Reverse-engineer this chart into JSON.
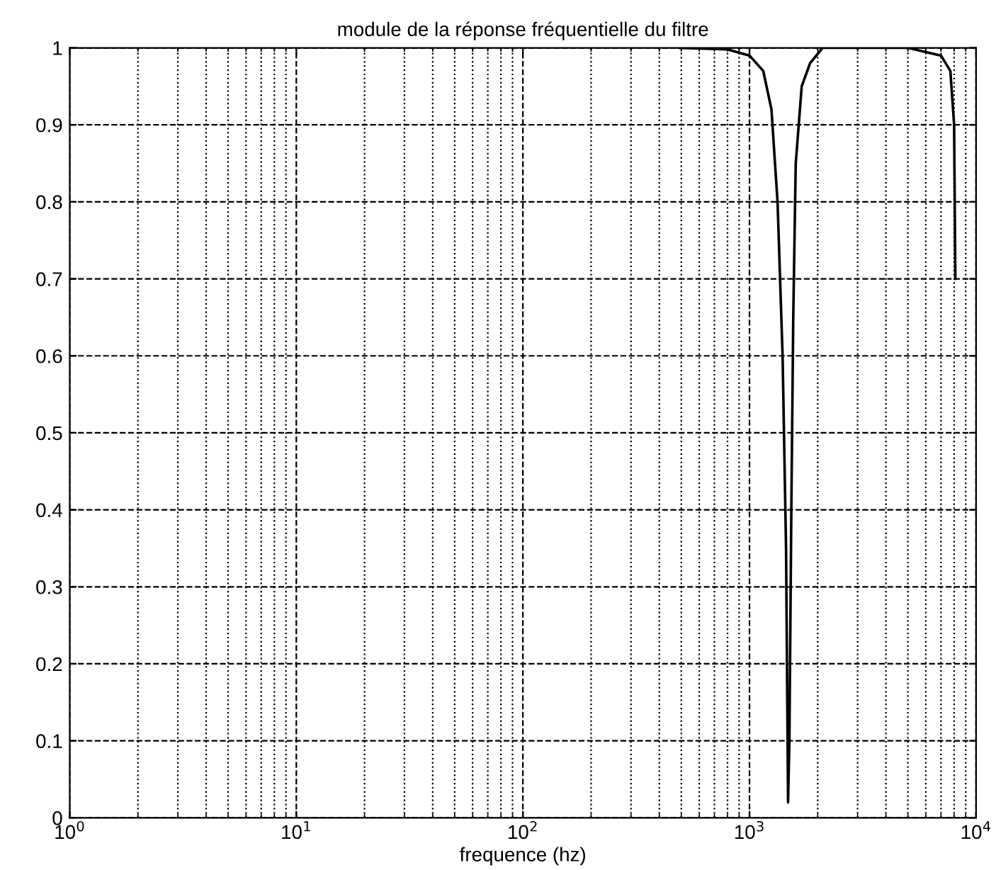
{
  "chart_data": {
    "type": "line",
    "title": "module de la réponse fréquentielle du filtre",
    "xlabel": "frequence (hz)",
    "log": "x",
    "grid": true,
    "marker": "none",
    "line_style": "solid",
    "xlim": [
      1,
      10000
    ],
    "ylim": [
      0,
      1
    ],
    "xticks": [
      {
        "value": 1,
        "label": "10$^{0}$"
      },
      {
        "value": 10,
        "label": "10$^{1}$"
      },
      {
        "value": 100,
        "label": "10$^{2}$"
      },
      {
        "value": 1000,
        "label": "10$^{3}$"
      },
      {
        "value": 10000,
        "label": "10$^{4}$"
      }
    ],
    "yticks": [
      0,
      0.1,
      0.2,
      0.3,
      0.4,
      0.5,
      0.6,
      0.7,
      0.8,
      0.9,
      1
    ],
    "series": [
      {
        "color": "#000000",
        "x": [
          490,
          800,
          1000,
          1150,
          1250,
          1330,
          1400,
          1450,
          1480,
          1500,
          1530,
          1560,
          1600,
          1700,
          1850,
          2100,
          5000,
          7000,
          7700,
          8000,
          8100
        ],
        "values": [
          1,
          0.998,
          0.99,
          0.97,
          0.92,
          0.8,
          0.6,
          0.35,
          0.02,
          0.1,
          0.4,
          0.65,
          0.85,
          0.95,
          0.98,
          1,
          1,
          0.99,
          0.97,
          0.9,
          0.7
        ]
      }
    ]
  }
}
